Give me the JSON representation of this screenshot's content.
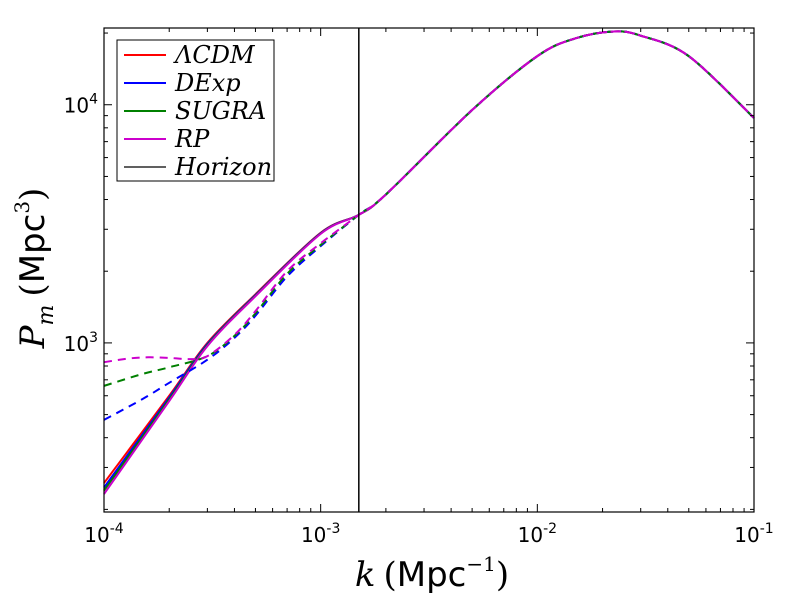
{
  "chart_data": {
    "type": "line",
    "xscale": "log",
    "yscale": "log",
    "xlim": [
      0.0001,
      0.1
    ],
    "ylim": [
      195,
      21000
    ],
    "xlabel": {
      "symbol": "k",
      "open": "(",
      "unit": "Mpc",
      "exp": "−1",
      "close": ")"
    },
    "ylabel": {
      "symbol": "P",
      "sub": "m",
      "open": "(",
      "unit": "Mpc",
      "exp": "3",
      "close": ")"
    },
    "x_ticks": [
      {
        "value": 0.0001,
        "base": "10",
        "exp": "-4"
      },
      {
        "value": 0.001,
        "base": "10",
        "exp": "-3"
      },
      {
        "value": 0.01,
        "base": "10",
        "exp": "-2"
      },
      {
        "value": 0.1,
        "base": "10",
        "exp": "-1"
      }
    ],
    "y_ticks": [
      {
        "value": 1000,
        "base": "10",
        "exp": "3"
      },
      {
        "value": 10000,
        "base": "10",
        "exp": "4"
      }
    ],
    "legend": {
      "placement": "top-left",
      "entries": [
        {
          "label": "ΛCDM",
          "color": "#ff0000"
        },
        {
          "label": "DExp",
          "color": "#0000ff"
        },
        {
          "label": "SUGRA",
          "color": "#008000"
        },
        {
          "label": "RP",
          "color": "#cc00cc"
        },
        {
          "label": "Horizon",
          "color": "#000000"
        }
      ]
    },
    "horizon": {
      "x": 0.0015,
      "color": "#000000"
    },
    "series": [
      {
        "name": "ΛCDM",
        "style": "solid",
        "color": "#ff0000",
        "x": [
          0.0001,
          0.0002,
          0.0003,
          0.0005,
          0.001,
          0.0015,
          0.002,
          0.005,
          0.01,
          0.015,
          0.0225,
          0.03,
          0.05,
          0.1
        ],
        "y": [
          258,
          600,
          1000,
          1600,
          2900,
          3450,
          4200,
          9500,
          16000,
          19000,
          20300,
          19500,
          16000,
          8800
        ]
      },
      {
        "name": "DExp",
        "style": "solid",
        "color": "#0000ff",
        "x": [
          0.0001,
          0.0002,
          0.0003,
          0.0005,
          0.001,
          0.0015,
          0.002,
          0.005,
          0.01,
          0.015,
          0.0225,
          0.03,
          0.05,
          0.1
        ],
        "y": [
          247,
          590,
          990,
          1590,
          2890,
          3450,
          4200,
          9500,
          16000,
          19000,
          20300,
          19500,
          16000,
          8800
        ]
      },
      {
        "name": "SUGRA",
        "style": "solid",
        "color": "#008000",
        "x": [
          0.0001,
          0.0002,
          0.0003,
          0.0005,
          0.001,
          0.0015,
          0.002,
          0.005,
          0.01,
          0.015,
          0.0225,
          0.03,
          0.05,
          0.1
        ],
        "y": [
          240,
          580,
          980,
          1580,
          2880,
          3450,
          4200,
          9500,
          16000,
          19000,
          20300,
          19500,
          16000,
          8800
        ]
      },
      {
        "name": "RP",
        "style": "solid",
        "color": "#cc00cc",
        "x": [
          0.0001,
          0.0002,
          0.0003,
          0.0005,
          0.001,
          0.0015,
          0.002,
          0.005,
          0.01,
          0.015,
          0.0225,
          0.03,
          0.05,
          0.1
        ],
        "y": [
          232,
          570,
          970,
          1570,
          2870,
          3450,
          4200,
          9500,
          16000,
          19000,
          20300,
          19500,
          16000,
          8800
        ]
      },
      {
        "name": "DExp",
        "style": "dashed",
        "color": "#0000ff",
        "x": [
          0.0001,
          0.00015,
          0.0002,
          0.0003,
          0.0004,
          0.0005,
          0.0007,
          0.001,
          0.0015,
          0.002,
          0.005,
          0.01,
          0.015,
          0.0225,
          0.03,
          0.05,
          0.1
        ],
        "y": [
          475,
          580,
          680,
          850,
          1050,
          1300,
          1900,
          2550,
          3450,
          4200,
          9500,
          16000,
          19000,
          20300,
          19500,
          16000,
          8800
        ]
      },
      {
        "name": "SUGRA",
        "style": "dashed",
        "color": "#008000",
        "x": [
          0.0001,
          0.00015,
          0.0002,
          0.0003,
          0.0004,
          0.0005,
          0.0007,
          0.001,
          0.0015,
          0.002,
          0.005,
          0.01,
          0.015,
          0.0225,
          0.03,
          0.05,
          0.1
        ],
        "y": [
          660,
          740,
          790,
          880,
          1070,
          1330,
          1950,
          2580,
          3450,
          4200,
          9500,
          16000,
          19000,
          20300,
          19500,
          16000,
          8800
        ]
      },
      {
        "name": "RP",
        "style": "dashed",
        "color": "#cc00cc",
        "x": [
          0.0001,
          0.00013,
          0.00016,
          0.0002,
          0.00025,
          0.0003,
          0.0004,
          0.0005,
          0.0007,
          0.001,
          0.0015,
          0.002,
          0.005,
          0.01,
          0.015,
          0.0225,
          0.03,
          0.05,
          0.1
        ],
        "y": [
          830,
          860,
          870,
          865,
          855,
          880,
          1080,
          1360,
          2000,
          2620,
          3450,
          4200,
          9500,
          16000,
          19000,
          20300,
          19500,
          16000,
          8800
        ]
      }
    ]
  }
}
